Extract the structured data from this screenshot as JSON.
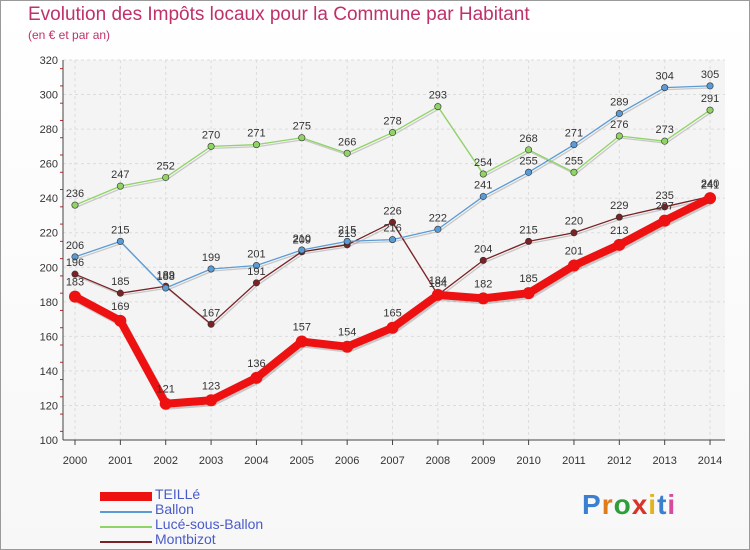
{
  "title": "Evolution des Impôts locaux pour la Commune par Habitant",
  "subtitle": "(en € et par an)",
  "logo": "Proxiti",
  "chart_data": {
    "type": "line",
    "title": "Evolution des Impôts locaux pour la Commune par Habitant",
    "subtitle": "(en € et par an)",
    "xlabel": "",
    "ylabel": "",
    "x": [
      2000,
      2001,
      2002,
      2003,
      2004,
      2005,
      2006,
      2007,
      2008,
      2009,
      2010,
      2011,
      2012,
      2013,
      2014
    ],
    "ylim": [
      100,
      320
    ],
    "yticks": [
      100,
      120,
      140,
      160,
      180,
      200,
      220,
      240,
      260,
      280,
      300,
      320
    ],
    "grid": true,
    "legend_position": "bottom-left",
    "series": [
      {
        "name": "Montbizot",
        "color": "#7a2226",
        "values": [
          196,
          185,
          189,
          167,
          191,
          209,
          213,
          226,
          184,
          204,
          215,
          220,
          229,
          235,
          241
        ]
      },
      {
        "name": "Ballon",
        "color": "#5b9bd5",
        "values": [
          206,
          215,
          188,
          199,
          201,
          210,
          215,
          216,
          222,
          241,
          255,
          271,
          289,
          304,
          305
        ]
      },
      {
        "name": "Lucé-sous-Ballon",
        "color": "#8fd464",
        "values": [
          236,
          247,
          252,
          270,
          271,
          275,
          266,
          278,
          293,
          254,
          268,
          255,
          276,
          273,
          291
        ]
      },
      {
        "name": "TEILLé",
        "color": "#ee1111",
        "values": [
          183,
          169,
          121,
          123,
          136,
          157,
          154,
          165,
          184,
          182,
          185,
          201,
          213,
          227,
          240
        ]
      }
    ],
    "legend": [
      {
        "name": "TEILLé",
        "color": "#ee1111"
      },
      {
        "name": "Ballon",
        "color": "#5b9bd5"
      },
      {
        "name": "Lucé-sous-Ballon",
        "color": "#8fd464"
      },
      {
        "name": "Montbizot",
        "color": "#7a2226"
      }
    ]
  }
}
